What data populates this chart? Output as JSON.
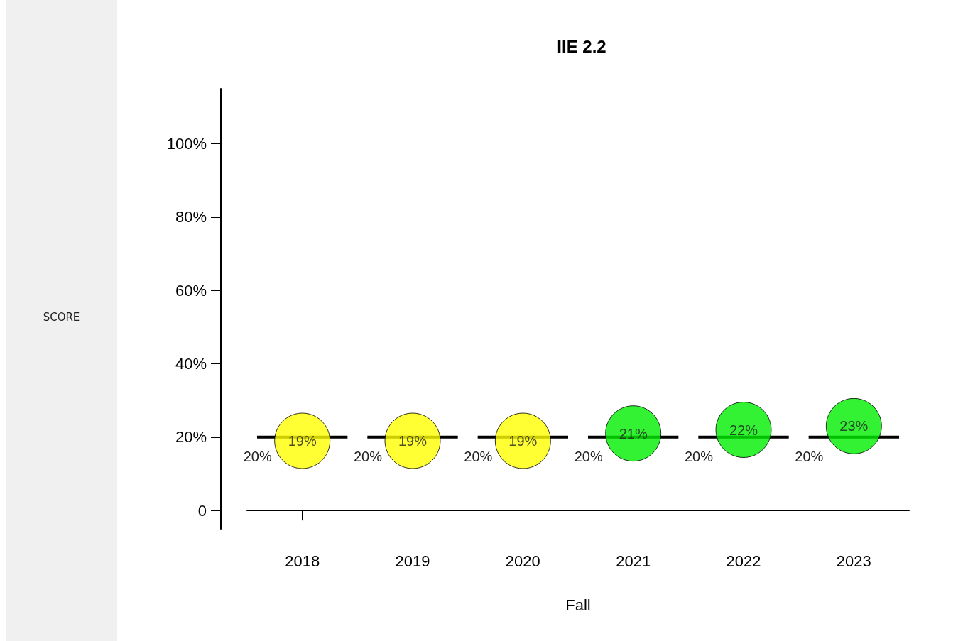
{
  "chart_data": {
    "type": "scatter",
    "title": "IIE 2.2",
    "xlabel": "Fall",
    "annotations": [
      "SCORE",
      {
        "text": "20%",
        "x": "2018",
        "y": 20
      },
      {
        "text": "20%",
        "x": "2019",
        "y": 20
      },
      {
        "text": "20%",
        "x": "2020",
        "y": 20
      },
      {
        "text": "20%",
        "x": "2021",
        "y": 20
      },
      {
        "text": "20%",
        "x": "2022",
        "y": 20
      },
      {
        "text": "20%",
        "x": "2023",
        "y": 20
      }
    ],
    "categories": [
      "2018",
      "2019",
      "2020",
      "2021",
      "2022",
      "2023"
    ],
    "ylim": [
      -5,
      115
    ],
    "yticks": [
      0,
      {
        "value": 20,
        "label": "20%"
      },
      {
        "value": 40,
        "label": "40%"
      },
      {
        "value": 60,
        "label": "60%"
      },
      {
        "value": 80,
        "label": "80%"
      },
      {
        "value": 100,
        "label": "100%"
      }
    ],
    "marker": "circle",
    "ref_lines": [
      {
        "axis": "y",
        "value": 20,
        "color": "#000000",
        "line_style": "dashed"
      }
    ],
    "series": [
      {
        "colors": [
          "#ffff00",
          "#ffff00",
          "#ffff00",
          "#00ee00",
          "#00ee00",
          "#00ee00"
        ],
        "values": [
          19,
          19,
          19,
          21,
          22,
          23
        ],
        "value_labels": [
          "19%",
          "19%",
          "19%",
          "21%",
          "22%",
          "23%"
        ]
      }
    ]
  }
}
